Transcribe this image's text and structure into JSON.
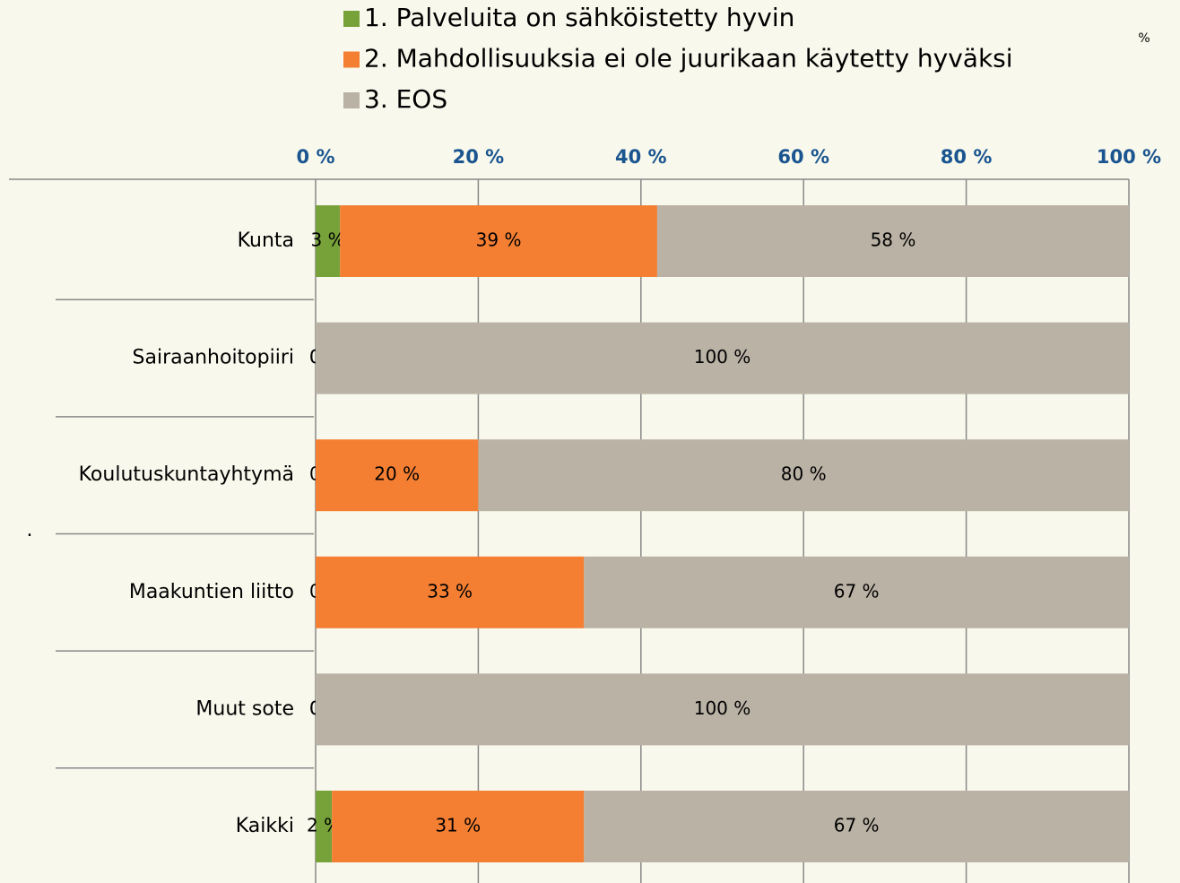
{
  "chart_data": {
    "type": "stacked_barh",
    "categories": [
      "Kunta",
      "Sairaanhoitopiiri",
      "Koulutuskuntayhtymä",
      "Maakuntien liitto",
      "Muut sote",
      "Kaikki"
    ],
    "series": [
      {
        "name": "1. Palveluita on sähköistetty hyvin",
        "color": "#77a23a",
        "values": [
          3,
          0,
          0,
          0,
          0,
          2
        ],
        "value_labels": [
          "3 %",
          "0 %",
          "0 %",
          "0 %",
          "0 %",
          "2 %"
        ]
      },
      {
        "name": "2. Mahdollisuuksia ei ole juurikaan käytetty hyväksi",
        "color": "#f47f33",
        "values": [
          39,
          0,
          20,
          33,
          0,
          31
        ],
        "value_labels": [
          "39 %",
          "0 %",
          "20 %",
          "33 %",
          "0 %",
          "31 %"
        ]
      },
      {
        "name": "3. EOS",
        "color": "#bab2a5",
        "values": [
          58,
          100,
          80,
          67,
          100,
          67
        ],
        "value_labels": [
          "58 %",
          "100 %",
          "80 %",
          "67 %",
          "100 %",
          "67 %"
        ]
      }
    ],
    "xlim": [
      0,
      100
    ],
    "xticks": [
      {
        "value": 0,
        "label": "0 %"
      },
      {
        "value": 20,
        "label": "20 %"
      },
      {
        "value": 40,
        "label": "40 %"
      },
      {
        "value": 60,
        "label": "60 %"
      },
      {
        "value": 80,
        "label": "80 %"
      },
      {
        "value": 100,
        "label": "100 %"
      }
    ],
    "grid": true,
    "annotations": [
      "%",
      "."
    ]
  }
}
